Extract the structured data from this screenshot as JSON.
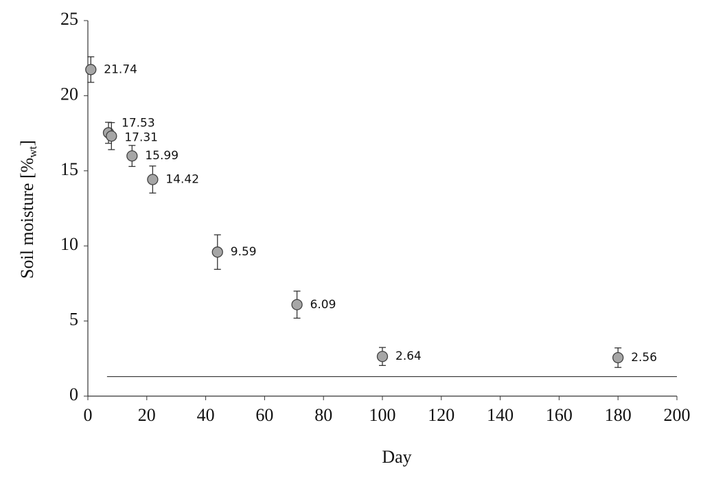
{
  "chart_data": {
    "type": "scatter",
    "xlabel": "Day",
    "ylabel_parts": [
      "Soil moisture  [%",
      "wt",
      "]"
    ],
    "x": [
      1,
      7,
      8,
      15,
      22,
      44,
      71,
      100,
      180
    ],
    "values": [
      21.74,
      17.53,
      17.31,
      15.99,
      14.42,
      9.59,
      6.09,
      2.64,
      2.56
    ],
    "errors": [
      0.85,
      0.7,
      0.9,
      0.7,
      0.9,
      1.15,
      0.9,
      0.6,
      0.65
    ],
    "color": "#a6a6a6",
    "xlim": [
      0,
      200
    ],
    "xticks": [
      0,
      20,
      40,
      60,
      80,
      100,
      120,
      140,
      160,
      180,
      200
    ],
    "ylim": [
      0,
      25
    ],
    "yticks": [
      0,
      5,
      10,
      15,
      20,
      25
    ],
    "reference_line": {
      "y": 1.3,
      "x": [
        6.5,
        200
      ]
    }
  }
}
